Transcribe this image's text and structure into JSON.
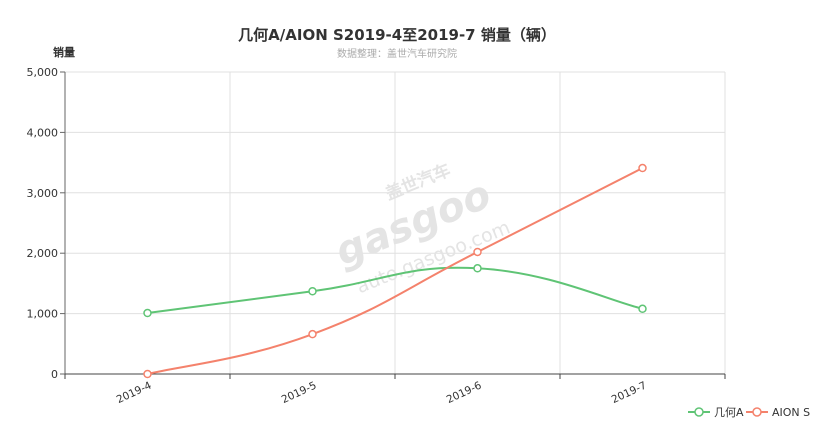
{
  "watermark": {
    "brand_cn": "盖世汽车",
    "brand_en": "gasgoo",
    "url": "auto.gasgoo.com"
  },
  "colors": {
    "background": "#ffffff",
    "text": "#333333",
    "subtitle": "#aaaaaa",
    "axis": "#666666",
    "grid": "#e0e0e0",
    "watermark": "#e4e4e4"
  },
  "chart_data": {
    "type": "line",
    "title": "几何A/AION S2019-4至2019-7 销量（辆）",
    "subtitle": "数据整理：盖世汽车研究院",
    "ylabel": "销量",
    "categories": [
      "2019-4",
      "2019-5",
      "2019-6",
      "2019-7"
    ],
    "ylim": [
      0,
      5000
    ],
    "yticks": [
      0,
      1000,
      2000,
      3000,
      4000,
      5000
    ],
    "ytick_labels": [
      "0",
      "1,000",
      "2,000",
      "3,000",
      "4,000",
      "5,000"
    ],
    "grid": true,
    "smooth": true,
    "legend_position": "bottom-right",
    "series": [
      {
        "name": "几何A",
        "color": "#5fc475",
        "values": [
          1010,
          1370,
          1750,
          1080
        ]
      },
      {
        "name": "AION S",
        "color": "#f4826c",
        "values": [
          0,
          660,
          2020,
          3410
        ]
      }
    ]
  }
}
